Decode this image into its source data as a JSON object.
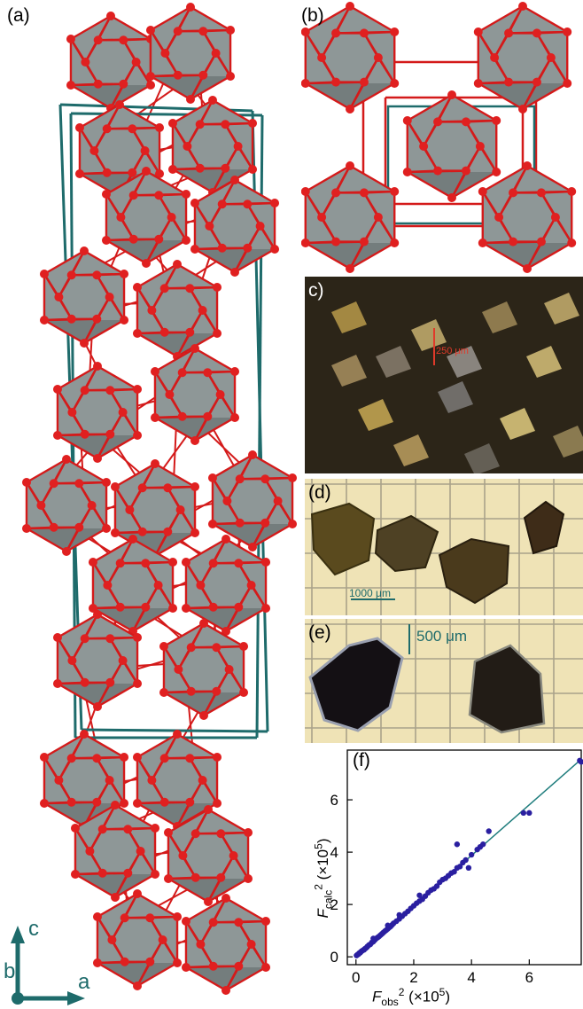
{
  "panels": {
    "a": {
      "label": "(a)",
      "axes": {
        "c": "c",
        "b": "b",
        "a": "a"
      }
    },
    "b": {
      "label": "(b)"
    },
    "c": {
      "label": "c)",
      "scalebar": "250 μm"
    },
    "d": {
      "label": "(d)",
      "scalebar": "1000 μm"
    },
    "e": {
      "label": "(e)",
      "scalebar": "500 μm"
    },
    "f": {
      "label": "(f)"
    }
  },
  "colors": {
    "polyhedron": "#8e9797",
    "polyhedron_dark": "#5f6868",
    "bond": "#d41a1a",
    "atom": "#e02020",
    "unit_cell": "#1e6b6b",
    "fit_line": "#1f7d7d",
    "points": "#2a1fa0",
    "photo_c_bg": "#2c2518",
    "photo_de_bg": "#efe3b6"
  },
  "chart_data": {
    "type": "scatter",
    "title": "",
    "xlabel": "F_obs^2 (×10^5)",
    "ylabel": "F_calc^2 (×10^5)",
    "xlim": [
      -0.3,
      7.8
    ],
    "ylim": [
      -0.3,
      7.9
    ],
    "xticks": [
      "0",
      "2",
      "4",
      "6"
    ],
    "yticks": [
      "0",
      "2",
      "4",
      "6"
    ],
    "fit_line": {
      "x": [
        0,
        7.8
      ],
      "y": [
        0,
        7.55
      ]
    },
    "series": [
      {
        "x": [
          0.02,
          0.05,
          0.08,
          0.1,
          0.12,
          0.15,
          0.18,
          0.2,
          0.24,
          0.28,
          0.3,
          0.34,
          0.38,
          0.4,
          0.45,
          0.5,
          0.55,
          0.6,
          0.65,
          0.7,
          0.75,
          0.8,
          0.85,
          0.9,
          0.95,
          1.0,
          1.05,
          1.1,
          1.15,
          1.2,
          1.25,
          1.3,
          1.4,
          1.5,
          1.6,
          1.7,
          1.8,
          1.9,
          2.0,
          2.1,
          2.2,
          2.3,
          2.4,
          2.5,
          2.6,
          2.7,
          2.8,
          2.9,
          3.0,
          3.1,
          3.2,
          3.3,
          3.4,
          3.5,
          3.6,
          3.7,
          3.8,
          4.0,
          4.2,
          4.3,
          4.4,
          4.6,
          5.8,
          6.0,
          7.8,
          7.75,
          3.5,
          3.9,
          0.6,
          1.1,
          1.5,
          2.2
        ],
        "y": [
          0.05,
          0.08,
          0.1,
          0.12,
          0.15,
          0.16,
          0.2,
          0.22,
          0.25,
          0.27,
          0.3,
          0.33,
          0.37,
          0.4,
          0.45,
          0.48,
          0.55,
          0.58,
          0.64,
          0.7,
          0.74,
          0.78,
          0.83,
          0.88,
          0.93,
          0.98,
          1.02,
          1.07,
          1.12,
          1.16,
          1.22,
          1.28,
          1.36,
          1.45,
          1.55,
          1.65,
          1.74,
          1.85,
          1.95,
          2.05,
          2.13,
          2.2,
          2.32,
          2.45,
          2.55,
          2.6,
          2.7,
          2.85,
          2.95,
          3.0,
          3.1,
          3.2,
          3.25,
          3.4,
          3.45,
          3.6,
          3.7,
          3.9,
          4.1,
          4.2,
          4.3,
          4.8,
          5.5,
          5.5,
          7.45,
          7.5,
          4.3,
          3.4,
          0.7,
          1.2,
          1.6,
          2.35
        ]
      }
    ]
  }
}
